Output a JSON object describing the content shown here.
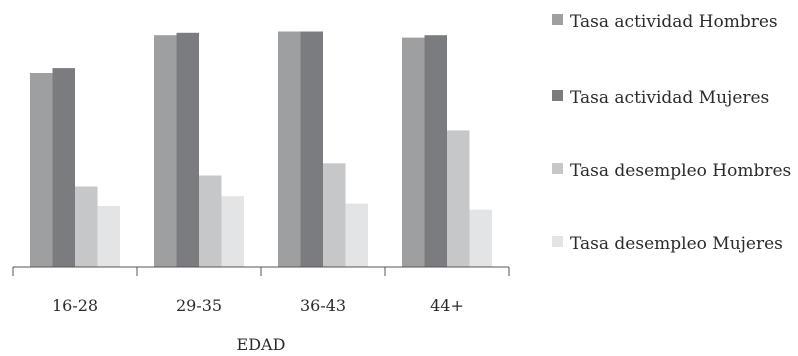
{
  "chart_data": {
    "type": "bar",
    "title": "",
    "xlabel": "EDAD",
    "ylabel": "",
    "categories": [
      "16-28",
      "29-35",
      "36-43",
      "44+"
    ],
    "series": [
      {
        "name": "Tasa actividad Hombres",
        "color": "#9e9fa1",
        "values": [
          79.5,
          95.0,
          96.5,
          94.0
        ]
      },
      {
        "name": "Tasa actividad Mujeres",
        "color": "#7b7c7f",
        "values": [
          81.5,
          96.0,
          96.5,
          95.0
        ]
      },
      {
        "name": "Tasa desempleo Hombres",
        "color": "#c6c7c9",
        "values": [
          33.0,
          37.5,
          42.5,
          56.0
        ]
      },
      {
        "name": "Tasa desempleo Mujeres",
        "color": "#e3e4e5",
        "values": [
          25.0,
          29.0,
          26.0,
          23.5
        ]
      }
    ],
    "ylim": [
      0,
      100
    ],
    "grid": false,
    "legend": "right"
  }
}
